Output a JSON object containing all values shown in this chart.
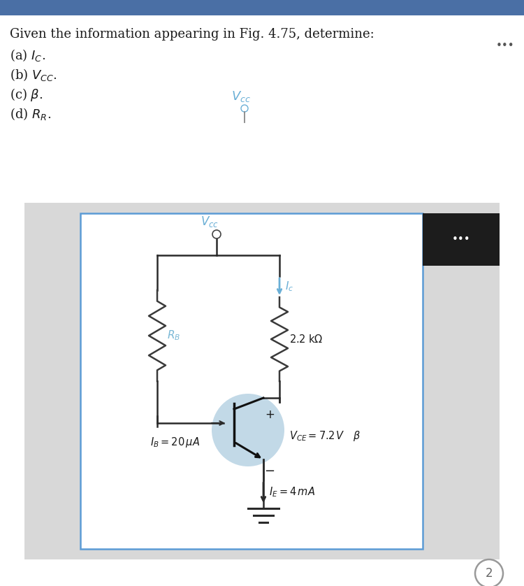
{
  "title_text": "Given the information appearing in Fig. 4.75, determine:",
  "q1": "(a) $I_C$.",
  "q2": "(b) $V_{CC}$.",
  "q3": "(c) $\\beta$.",
  "q4": "(d) $R_R$.",
  "bg_white": "#ffffff",
  "bg_gray": "#e0e0e0",
  "header_blue": "#4a6fa5",
  "border_blue": "#5b9bd5",
  "vcc_blue": "#6aafd6",
  "ic_blue": "#6aafd6",
  "rb_blue": "#7ab8d6",
  "dark_box": "#1c1c1c",
  "wire_color": "#2a2a2a",
  "text_dark": "#1a1a1a",
  "transistor_fill": "#aecde0",
  "dots_gray": "#555555",
  "resistor_color": "#3a3a3a"
}
